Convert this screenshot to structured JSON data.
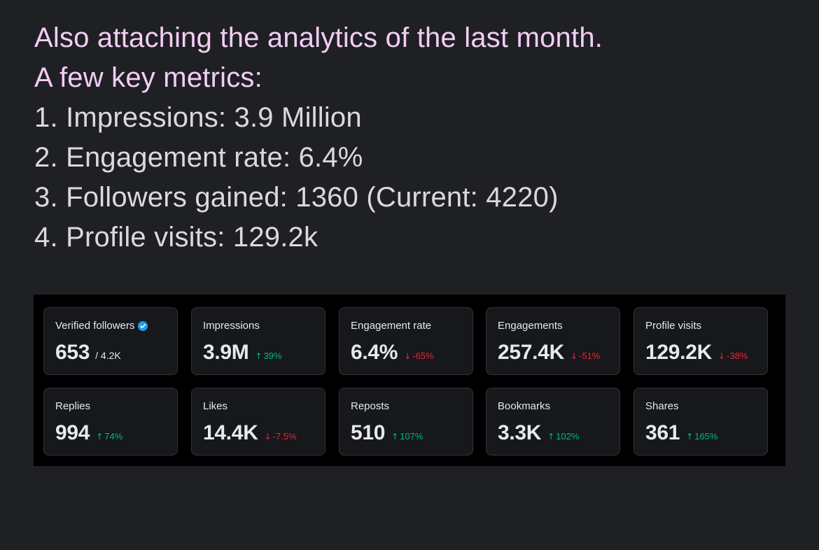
{
  "message": {
    "lines": [
      "Also attaching the analytics of the last month.",
      "A few key metrics:",
      "1. Impressions: 3.9 Million",
      "2. Engagement rate: 6.4%",
      "3. Followers gained: 1360 (Current: 4220)",
      "4. Profile visits: 129.2k"
    ]
  },
  "analytics": {
    "colors": {
      "positive": "#00ba7c",
      "negative": "#f4212e",
      "verified_badge": "#1d9bf0"
    },
    "cards": [
      {
        "label": "Verified followers",
        "value": "653",
        "sub": "/ 4.2K",
        "icon": "verified-badge-icon"
      },
      {
        "label": "Impressions",
        "value": "3.9M",
        "delta": "39%",
        "direction": "up"
      },
      {
        "label": "Engagement rate",
        "value": "6.4%",
        "delta": "-65%",
        "direction": "down"
      },
      {
        "label": "Engagements",
        "value": "257.4K",
        "delta": "-51%",
        "direction": "down"
      },
      {
        "label": "Profile visits",
        "value": "129.2K",
        "delta": "-38%",
        "direction": "down"
      },
      {
        "label": "Replies",
        "value": "994",
        "delta": "74%",
        "direction": "up"
      },
      {
        "label": "Likes",
        "value": "14.4K",
        "delta": "-7.5%",
        "direction": "down"
      },
      {
        "label": "Reposts",
        "value": "510",
        "delta": "107%",
        "direction": "up"
      },
      {
        "label": "Bookmarks",
        "value": "3.3K",
        "delta": "102%",
        "direction": "up"
      },
      {
        "label": "Shares",
        "value": "361",
        "delta": "165%",
        "direction": "up"
      }
    ]
  }
}
